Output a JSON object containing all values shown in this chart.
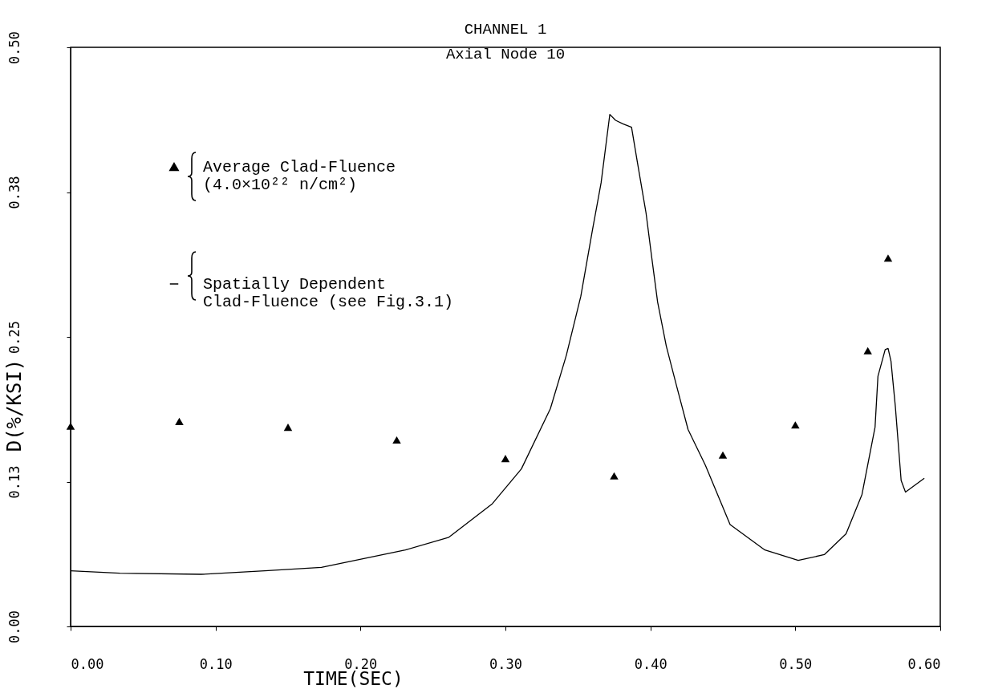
{
  "chart_data": {
    "type": "scatter",
    "title": "CHANNEL 1",
    "subtitle": "Axial Node 10",
    "xlabel": "TIME(SEC)",
    "ylabel": "D(%/KSI)",
    "xlim": [
      0,
      0.6
    ],
    "ylim": [
      0,
      0.5
    ],
    "xticks": [
      {
        "value": 0,
        "label": "0.00"
      },
      {
        "value": 0.1,
        "label": "0.10"
      },
      {
        "value": 0.2,
        "label": "0.20"
      },
      {
        "value": 0.3,
        "label": "0.30"
      },
      {
        "value": 0.4,
        "label": "0.40"
      },
      {
        "value": 0.5,
        "label": "0.50"
      },
      {
        "value": 0.6,
        "label": "0.60"
      }
    ],
    "yticks": [
      {
        "value": 0,
        "label": "0.00"
      },
      {
        "value": 0.125,
        "label": "0.13"
      },
      {
        "value": 0.25,
        "label": "0.25"
      },
      {
        "value": 0.375,
        "label": "0.38"
      },
      {
        "value": 0.5,
        "label": "0.50"
      }
    ],
    "legend": "top left",
    "series": [
      {
        "name": "Average Clad-Fluence\n(4.0×10²² n/cm²)",
        "marker": "triangle",
        "color": "#000000",
        "x": [
          0,
          0.075,
          0.15,
          0.225,
          0.3,
          0.375,
          0.45,
          0.5,
          0.55,
          0.564
        ],
        "values": [
          0.173,
          0.177,
          0.172,
          0.161,
          0.145,
          0.13,
          0.148,
          0.174,
          0.238,
          0.318
        ]
      },
      {
        "name": "Spatially Dependent\nClad-Fluence (see Fig.3.1)",
        "type": "line",
        "line_style": "solid",
        "color": "#000000",
        "x": [
          0,
          0.034,
          0.09,
          0.134,
          0.173,
          0.231,
          0.261,
          0.291,
          0.311,
          0.331,
          0.342,
          0.352,
          0.36,
          0.366,
          0.372,
          0.376,
          0.381,
          0.387,
          0.391,
          0.397,
          0.401,
          0.405,
          0.411,
          0.418,
          0.426,
          0.438,
          0.455,
          0.479,
          0.502,
          0.52,
          0.535,
          0.546,
          0.555,
          0.557,
          0.562,
          0.564,
          0.566,
          0.569,
          0.573,
          0.576,
          0.589
        ],
        "values": [
          0.048,
          0.046,
          0.045,
          0.048,
          0.051,
          0.066,
          0.077,
          0.106,
          0.136,
          0.188,
          0.234,
          0.285,
          0.342,
          0.383,
          0.442,
          0.437,
          0.434,
          0.431,
          0.401,
          0.357,
          0.318,
          0.28,
          0.242,
          0.208,
          0.17,
          0.139,
          0.088,
          0.066,
          0.057,
          0.062,
          0.08,
          0.114,
          0.172,
          0.216,
          0.239,
          0.24,
          0.229,
          0.19,
          0.126,
          0.116,
          0.128
        ]
      }
    ]
  }
}
